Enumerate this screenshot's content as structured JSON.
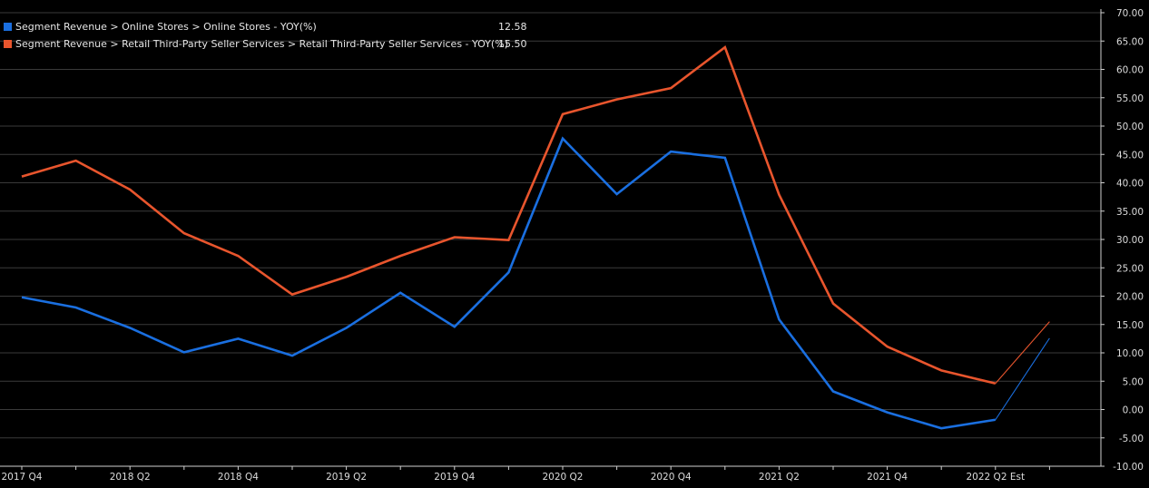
{
  "chart_data": {
    "type": "line",
    "categories": [
      "2017 Q4",
      "2018 Q1",
      "2018 Q2",
      "2018 Q3",
      "2018 Q4",
      "2019 Q1",
      "2019 Q2",
      "2019 Q3",
      "2019 Q4",
      "2020 Q1",
      "2020 Q2",
      "2020 Q3",
      "2020 Q4",
      "2021 Q1",
      "2021 Q2",
      "2021 Q3",
      "2021 Q4",
      "2022 Q1",
      "2022 Q2 Est",
      "2022 Q3"
    ],
    "x_tick_labels": [
      "2017 Q4",
      "2018 Q2",
      "2018 Q4",
      "2019 Q2",
      "2019 Q4",
      "2020 Q2",
      "2020 Q4",
      "2021 Q2",
      "2021 Q4",
      "2022 Q2 Est"
    ],
    "x_tick_indices": [
      0,
      2,
      4,
      6,
      8,
      10,
      12,
      14,
      16,
      18
    ],
    "ylim": [
      -10,
      70
    ],
    "y_ticks": [
      -10,
      -5,
      0,
      5,
      10,
      15,
      20,
      25,
      30,
      35,
      40,
      45,
      50,
      55,
      60,
      65,
      70
    ],
    "y_tick_labels": [
      "-10.00",
      "-5.00",
      "0.00",
      "5.00",
      "10.00",
      "15.00",
      "20.00",
      "25.00",
      "30.00",
      "35.00",
      "40.00",
      "45.00",
      "50.00",
      "55.00",
      "60.00",
      "65.00",
      "70.00"
    ],
    "grid": true,
    "legend_position": "top-left",
    "series": [
      {
        "name": "Segment Revenue > Online Stores > Online Stores - YOY(%)",
        "last_value": "12.58",
        "color": "#1a6fe0",
        "values": [
          19.8,
          18.0,
          14.4,
          10.1,
          12.5,
          9.5,
          14.4,
          20.6,
          14.6,
          24.2,
          47.8,
          38.0,
          45.5,
          44.4,
          15.9,
          3.2,
          -0.5,
          -3.3,
          -1.8,
          12.58
        ]
      },
      {
        "name": "Segment Revenue > Retail Third-Party Seller Services > Retail Third-Party Seller Services - YOY(%)",
        "last_value": "15.50",
        "color": "#e8552d",
        "values": [
          41.1,
          43.9,
          38.8,
          31.1,
          27.1,
          20.3,
          23.4,
          27.1,
          30.4,
          29.9,
          52.1,
          54.7,
          56.7,
          63.9,
          37.9,
          18.7,
          11.1,
          6.9,
          4.6,
          15.5
        ]
      }
    ]
  }
}
